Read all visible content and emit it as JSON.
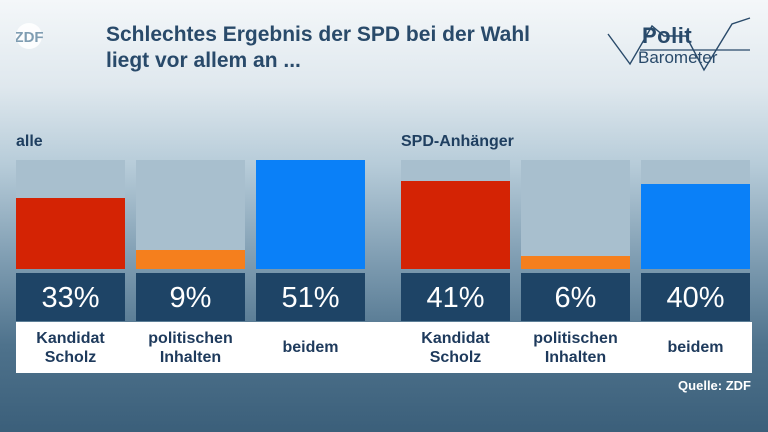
{
  "title": {
    "line1": "Schlechtes Ergebnis der SPD bei der Wahl",
    "line2": "liegt vor allem an ..."
  },
  "logo": {
    "text": "ZDF",
    "icon": "zdf-logo"
  },
  "brand": {
    "polit": "Polit",
    "barometer": "Barometer",
    "icon": "politbarometer-logo"
  },
  "source": "Quelle: ZDF",
  "colors": {
    "red": "#d42304",
    "orange": "#f57f1d",
    "blue": "#0a80f8",
    "track": "#a8bfce",
    "value_box": "#1e4466",
    "title": "#294a6a"
  },
  "chart_data": [
    {
      "type": "bar",
      "group": "alle",
      "categories": [
        "Kandidat Scholz",
        "politischen Inhalten",
        "beidem"
      ],
      "values": [
        33,
        9,
        51
      ],
      "value_labels": [
        "33%",
        "9%",
        "51%"
      ],
      "ylim": [
        0,
        51
      ]
    },
    {
      "type": "bar",
      "group": "SPD-Anhänger",
      "categories": [
        "Kandidat Scholz",
        "politischen Inhalten",
        "beidem"
      ],
      "values": [
        41,
        6,
        40
      ],
      "value_labels": [
        "41%",
        "6%",
        "40%"
      ],
      "ylim": [
        0,
        51
      ]
    }
  ],
  "category_lines": [
    [
      "Kandidat",
      "Scholz"
    ],
    [
      "politischen",
      "Inhalten"
    ],
    [
      "beidem"
    ]
  ]
}
